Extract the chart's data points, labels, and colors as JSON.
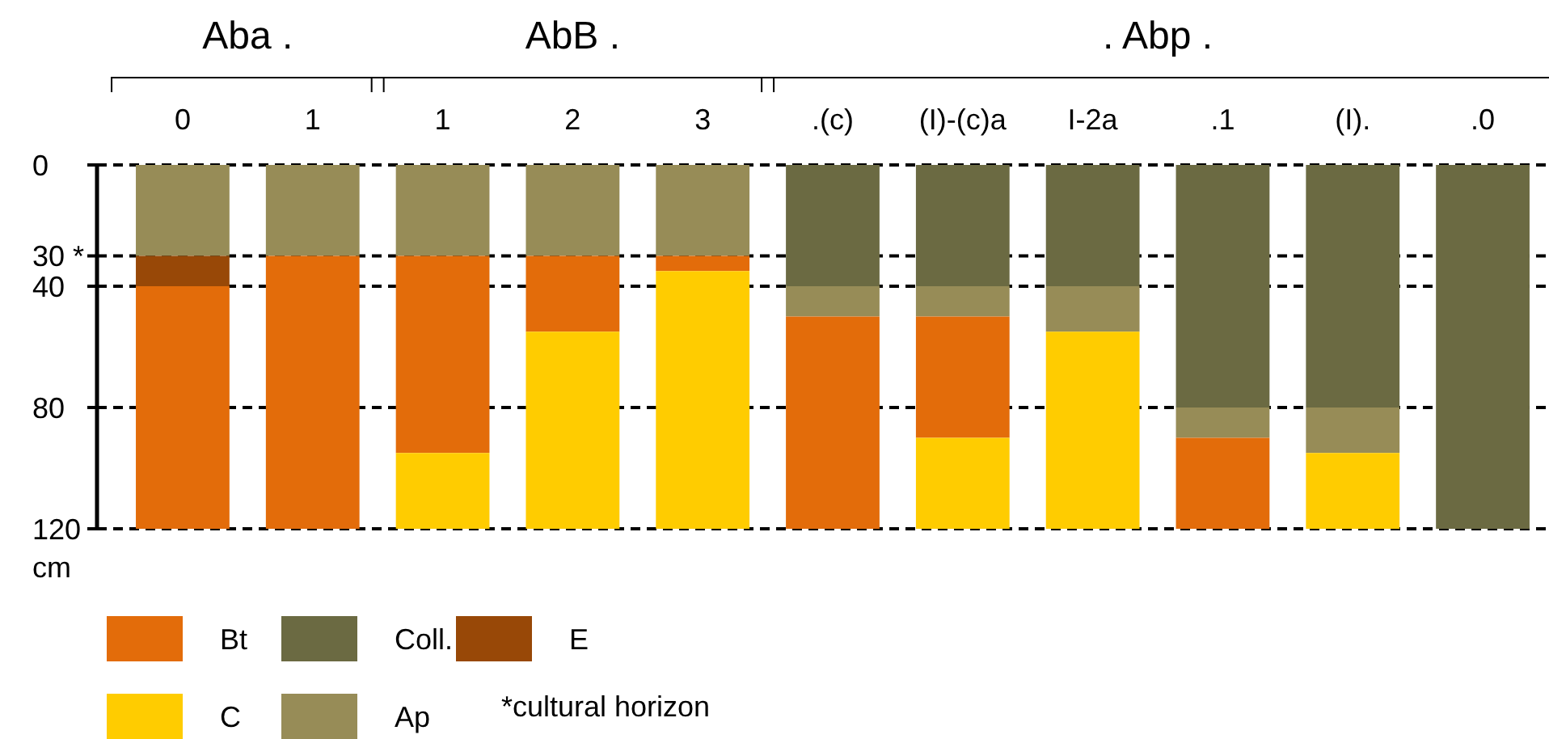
{
  "chart_data": {
    "type": "bar",
    "stacked": true,
    "categories": [
      "0",
      "1",
      "1",
      "2",
      "3",
      ".(c)",
      "(I)-(c)a",
      "I-2a",
      ".1",
      "(I).",
      ".0"
    ],
    "series": [
      {
        "name": "Coll.",
        "color": "#6b6a42",
        "values": [
          0,
          0,
          0,
          0,
          0,
          40,
          40,
          40,
          80,
          80,
          120
        ]
      },
      {
        "name": "Ap",
        "color": "#978c57",
        "values": [
          30,
          30,
          30,
          30,
          30,
          10,
          10,
          15,
          10,
          15,
          0
        ]
      },
      {
        "name": "E",
        "color": "#984807",
        "values": [
          10,
          0,
          0,
          0,
          0,
          0,
          0,
          0,
          0,
          0,
          0
        ]
      },
      {
        "name": "Bt",
        "color": "#e36c0a",
        "values": [
          80,
          90,
          65,
          25,
          5,
          70,
          40,
          0,
          30,
          0,
          0
        ]
      },
      {
        "name": "C",
        "color": "#ffcc00",
        "values": [
          0,
          0,
          25,
          65,
          85,
          0,
          30,
          65,
          0,
          25,
          0
        ]
      }
    ],
    "ylim": [
      120,
      0
    ],
    "yticks": [
      0,
      {
        "value": 30,
        "label": "30 *"
      },
      40,
      80,
      120
    ],
    "ylabel": "cm",
    "grid": "y",
    "line_style": "dashed",
    "legend": "bottom",
    "annotations": [
      "Aba .",
      "AbB .",
      ". Abp .",
      "*cultural horizon"
    ]
  }
}
